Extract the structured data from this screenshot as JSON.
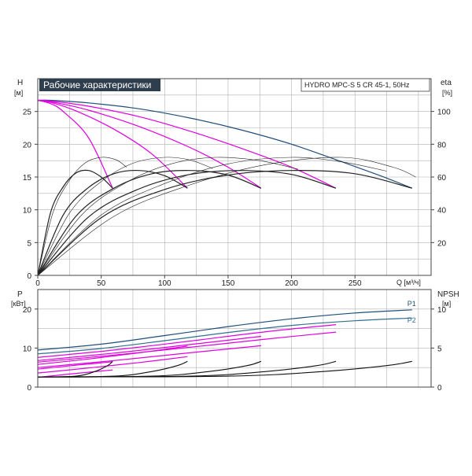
{
  "header": {
    "title": "Рабочие характеристики",
    "model": "HYDRO MPC-S 5 CR 45-1, 50Hz"
  },
  "colors": {
    "grid": "#b0b0b0",
    "frame": "#444444",
    "title_bg": "#2f3e4d",
    "p1_curve": "#1f4e79",
    "p2_curve": "#2f6f8f",
    "partial_speed": "#e000e0",
    "efficiency": "#222222",
    "npsh": "#111111"
  },
  "chart_data": [
    {
      "type": "line",
      "name": "head-efficiency",
      "y_left_label": "H",
      "y_left_unit": "[м]",
      "y_right_label": "eta",
      "y_right_unit": "[%]",
      "x_label": "Q [м³/ч]",
      "xlim": [
        0,
        310
      ],
      "ylim_left": [
        0,
        30
      ],
      "ylim_right": [
        0,
        120
      ],
      "x_ticks": [
        0,
        50,
        100,
        150,
        200,
        250
      ],
      "y_left_ticks": [
        0,
        5,
        10,
        15,
        20,
        25
      ],
      "y_right_ticks": [
        20,
        40,
        60,
        80,
        100
      ],
      "grid": true,
      "series": [
        {
          "color_key": "p1_curve",
          "x": [
            0,
            10,
            40,
            80,
            120,
            160,
            200,
            240,
            270,
            295
          ],
          "y": [
            26.7,
            26.7,
            26.3,
            25.4,
            24.0,
            22.2,
            20.0,
            17.3,
            15.2,
            13.3
          ]
        },
        {
          "color_key": "partial_speed",
          "x": [
            0,
            10,
            40,
            80,
            120,
            160,
            200,
            235
          ],
          "y": [
            26.7,
            26.6,
            25.8,
            24.2,
            22.0,
            19.4,
            16.5,
            13.3
          ]
        },
        {
          "color_key": "partial_speed",
          "x": [
            0,
            10,
            40,
            80,
            120,
            150,
            176
          ],
          "y": [
            26.7,
            26.5,
            25.2,
            22.7,
            19.5,
            16.5,
            13.3
          ]
        },
        {
          "color_key": "partial_speed",
          "x": [
            0,
            10,
            30,
            60,
            90,
            118
          ],
          "y": [
            26.7,
            26.4,
            25.1,
            22.3,
            18.5,
            13.3
          ]
        },
        {
          "color_key": "partial_speed",
          "x": [
            0,
            10,
            20,
            40,
            59
          ],
          "y": [
            26.7,
            26.2,
            25.0,
            21.0,
            13.3
          ]
        },
        {
          "color_key": "efficiency",
          "x": [
            0,
            10,
            20,
            30,
            40,
            50,
            59
          ],
          "y": [
            0,
            9.5,
            13.5,
            15.6,
            16.0,
            15.0,
            13.3
          ]
        },
        {
          "color_key": "efficiency",
          "x": [
            0,
            20,
            40,
            60,
            80,
            100,
            118
          ],
          "y": [
            0,
            9.2,
            13.4,
            15.5,
            16.0,
            15.2,
            13.3
          ]
        },
        {
          "color_key": "efficiency",
          "x": [
            0,
            30,
            60,
            90,
            120,
            150,
            176
          ],
          "y": [
            0,
            9.0,
            13.3,
            15.5,
            16.0,
            15.3,
            13.3
          ]
        },
        {
          "color_key": "efficiency",
          "x": [
            0,
            40,
            80,
            120,
            160,
            200,
            235
          ],
          "y": [
            0,
            8.9,
            13.2,
            15.4,
            16.0,
            15.4,
            13.3
          ]
        },
        {
          "color_key": "efficiency",
          "x": [
            0,
            50,
            100,
            150,
            200,
            250,
            295
          ],
          "y": [
            0,
            8.8,
            13.1,
            15.3,
            16.0,
            15.5,
            13.3
          ]
        },
        {
          "color_key": "efficiency",
          "x": [
            0,
            12,
            25,
            37,
            50,
            62,
            70
          ],
          "y": [
            0,
            9.6,
            14.5,
            17.1,
            18.0,
            17.6,
            16.5
          ]
        },
        {
          "color_key": "efficiency",
          "x": [
            0,
            25,
            50,
            75,
            100,
            120,
            138
          ],
          "y": [
            0,
            9.5,
            14.3,
            17.1,
            18.0,
            17.6,
            16.3
          ]
        },
        {
          "color_key": "efficiency",
          "x": [
            0,
            35,
            70,
            105,
            140,
            175,
            205
          ],
          "y": [
            0,
            9.3,
            14.2,
            17.0,
            18.0,
            17.5,
            16.2
          ]
        },
        {
          "color_key": "efficiency",
          "x": [
            0,
            50,
            100,
            150,
            200,
            240,
            275
          ],
          "y": [
            0,
            9.2,
            14.0,
            17.0,
            18.0,
            17.3,
            15.9
          ]
        },
        {
          "color_key": "efficiency",
          "x": [
            0,
            60,
            120,
            180,
            240,
            280,
            298
          ],
          "y": [
            0,
            9.0,
            13.8,
            16.9,
            18.0,
            16.5,
            15.0
          ]
        }
      ]
    },
    {
      "type": "line",
      "name": "power-npsh",
      "y_left_label": "P",
      "y_left_unit": "[кВт]",
      "y_right_label": "NPSH",
      "y_right_unit": "[м]",
      "xlim": [
        0,
        310
      ],
      "ylim_left": [
        0,
        25
      ],
      "ylim_right": [
        0,
        12.5
      ],
      "y_left_ticks": [
        0,
        10,
        20
      ],
      "y_right_ticks": [
        0,
        5,
        10
      ],
      "grid": true,
      "series": [
        {
          "name": "P1",
          "color_key": "p1_curve",
          "x": [
            0,
            50,
            100,
            150,
            200,
            250,
            295
          ],
          "y": [
            9.5,
            11.0,
            13.2,
            15.5,
            17.5,
            19.0,
            19.8
          ]
        },
        {
          "name": "P2",
          "color_key": "p2_curve",
          "x": [
            0,
            50,
            100,
            150,
            200,
            250,
            295
          ],
          "y": [
            8.5,
            9.9,
            11.9,
            14.0,
            15.8,
            17.0,
            17.7
          ]
        },
        {
          "color_key": "partial_speed",
          "x": [
            0,
            60,
            120,
            180,
            235
          ],
          "y": [
            7.6,
            9.5,
            11.8,
            14.2,
            16.0
          ]
        },
        {
          "color_key": "partial_speed",
          "x": [
            0,
            60,
            120,
            176
          ],
          "y": [
            6.8,
            8.7,
            10.9,
            13.0
          ]
        },
        {
          "color_key": "partial_speed",
          "x": [
            0,
            40,
            80,
            118
          ],
          "y": [
            5.8,
            7.2,
            8.8,
            10.5
          ]
        },
        {
          "color_key": "partial_speed",
          "x": [
            0,
            30,
            59
          ],
          "y": [
            4.6,
            5.6,
            6.5
          ]
        },
        {
          "color_key": "partial_speed",
          "x": [
            0,
            60,
            120,
            180,
            235
          ],
          "y": [
            6.4,
            8.2,
            10.2,
            12.3,
            14.1
          ]
        },
        {
          "color_key": "partial_speed",
          "x": [
            0,
            40,
            80,
            118
          ],
          "y": [
            3.6,
            4.9,
            6.3,
            7.8
          ]
        },
        {
          "color_key": "partial_speed",
          "x": [
            0,
            30,
            59
          ],
          "y": [
            2.5,
            3.5,
            4.4
          ]
        },
        {
          "color_key": "partial_speed",
          "x": [
            0,
            60,
            120,
            176
          ],
          "y": [
            5.0,
            6.8,
            8.8,
            10.6
          ]
        },
        {
          "color_key": "npsh",
          "x": [
            0,
            30,
            45,
            55,
            59
          ],
          "y": [
            2.6,
            2.8,
            4.0,
            5.5,
            6.6
          ]
        },
        {
          "color_key": "npsh",
          "x": [
            0,
            60,
            90,
            110,
            118
          ],
          "y": [
            2.6,
            2.8,
            4.0,
            5.5,
            6.6
          ]
        },
        {
          "color_key": "npsh",
          "x": [
            0,
            90,
            135,
            165,
            176
          ],
          "y": [
            2.6,
            2.8,
            4.0,
            5.5,
            6.6
          ]
        },
        {
          "color_key": "npsh",
          "x": [
            0,
            120,
            180,
            220,
            235
          ],
          "y": [
            2.6,
            2.8,
            4.0,
            5.5,
            6.6
          ]
        },
        {
          "color_key": "npsh",
          "x": [
            0,
            150,
            225,
            275,
            295
          ],
          "y": [
            2.6,
            2.8,
            4.0,
            5.5,
            6.6
          ]
        }
      ]
    }
  ]
}
